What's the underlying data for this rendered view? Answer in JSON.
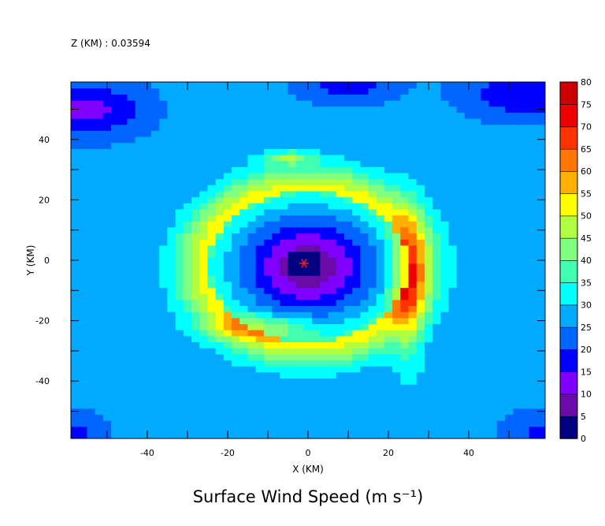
{
  "header": {
    "level_text": "Z (KM) : 0.03594"
  },
  "chart_data": {
    "type": "heatmap",
    "title": "Surface Wind Speed (m s⁻¹)",
    "xlabel": "X (KM)",
    "ylabel": "Y (KM)",
    "xlim": [
      -59,
      59
    ],
    "ylim": [
      -59,
      59
    ],
    "x_ticks": [
      -40,
      -20,
      0,
      20,
      40
    ],
    "y_ticks": [
      -40,
      -20,
      0,
      20,
      40
    ],
    "x_minor_step": 10,
    "y_minor_step": 10,
    "x_tick_labels": [
      "-40",
      "-20",
      "0",
      "20",
      "40"
    ],
    "y_tick_labels": [
      "-40",
      "-20",
      "0",
      "20",
      "40"
    ],
    "colorbar": {
      "levels": [
        0,
        5,
        10,
        15,
        20,
        25,
        30,
        35,
        40,
        45,
        50,
        55,
        60,
        65,
        70,
        75,
        80
      ],
      "labels": [
        "0",
        "5",
        "10",
        "15",
        "20",
        "25",
        "30",
        "35",
        "40",
        "45",
        "50",
        "55",
        "60",
        "65",
        "70",
        "75",
        "80"
      ],
      "colors": [
        "#000080",
        "#6a0aa8",
        "#8000ff",
        "#0000ff",
        "#0066ff",
        "#00aaff",
        "#00ffff",
        "#40ffb0",
        "#80ff80",
        "#b0ff40",
        "#ffff00",
        "#ffb000",
        "#ff7700",
        "#ff3300",
        "#ee0000",
        "#cc0000",
        "#990000"
      ]
    },
    "field": {
      "background_speed": 27,
      "center": [
        -1,
        -1
      ],
      "marker": "red-asterisk",
      "features": [
        {
          "name": "rmw-ring",
          "x": 0,
          "y": -2,
          "radius": 25,
          "width": 8,
          "amp": 26
        },
        {
          "name": "east-max",
          "x": 25,
          "y": -8,
          "sx": 4,
          "sy": 24,
          "amp": 20
        },
        {
          "name": "south-max",
          "x": -12,
          "y": -22,
          "sx": 13,
          "sy": 4,
          "amp": 12
        },
        {
          "name": "north-max",
          "x": -5,
          "y": 34,
          "sx": 6,
          "sy": 2,
          "amp": 18
        },
        {
          "name": "west-blob",
          "x": -55,
          "y": 50,
          "sx": 14,
          "sy": 9,
          "amp": -14
        },
        {
          "name": "ne-blob",
          "x": 55,
          "y": 55,
          "sx": 16,
          "sy": 8,
          "amp": -12
        },
        {
          "name": "n-blob",
          "x": 10,
          "y": 58,
          "sx": 12,
          "sy": 6,
          "amp": -10
        },
        {
          "name": "sw-corner",
          "x": -58,
          "y": -58,
          "sx": 8,
          "sy": 8,
          "amp": -8
        },
        {
          "name": "se-corner",
          "x": 58,
          "y": -58,
          "sx": 10,
          "sy": 8,
          "amp": -8
        }
      ]
    }
  }
}
